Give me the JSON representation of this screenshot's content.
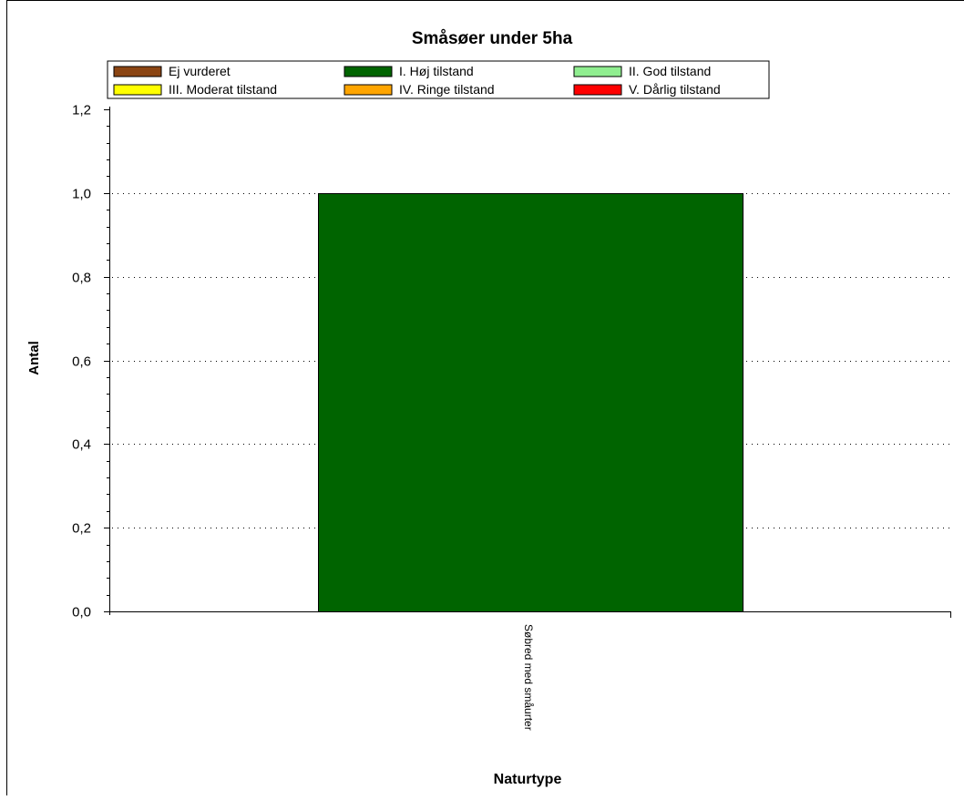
{
  "chart_data": {
    "type": "bar",
    "title": "Småsøer under 5ha",
    "xlabel": "Naturtype",
    "ylabel": "Antal",
    "categories": [
      "Søbred med småurter"
    ],
    "series": [
      {
        "name": "Ej vurderet",
        "color": "#8B4513",
        "values": [
          0
        ]
      },
      {
        "name": "I. Høj tilstand",
        "color": "#006400",
        "values": [
          1.0
        ]
      },
      {
        "name": "II. God tilstand",
        "color": "#90EE90",
        "values": [
          0
        ]
      },
      {
        "name": "III. Moderat tilstand",
        "color": "#FFFF00",
        "values": [
          0
        ]
      },
      {
        "name": "IV. Ringe tilstand",
        "color": "#FFA500",
        "values": [
          0
        ]
      },
      {
        "name": "V. Dårlig tilstand",
        "color": "#FF0000",
        "values": [
          0
        ]
      }
    ],
    "ylim": [
      0,
      1.2
    ],
    "yticks": [
      "0,0",
      "0,2",
      "0,4",
      "0,6",
      "0,8",
      "1,0",
      "1,2"
    ],
    "grid": "horizontal-dotted",
    "legend_position": "top"
  }
}
